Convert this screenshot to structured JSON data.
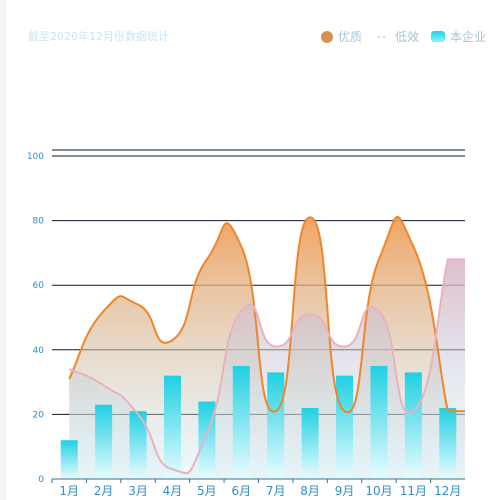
{
  "note": "截至2020年12月份数据统计",
  "colors": {
    "accent_line": "#f0862a",
    "accent_fill": "#eeaa6c",
    "line_pink": "#e8b2c0",
    "bar_top": "#1fd0e3",
    "bar_bottom": "#e9fcff",
    "axis_label": "#2f8fc9",
    "grid": "#0a1a2a"
  },
  "legend": {
    "items": [
      {
        "label": "优质",
        "color": "#d6914e",
        "shape": "circle"
      },
      {
        "label": "低效",
        "color": "#e6bcc7",
        "shape": "dashed"
      },
      {
        "label": "本企业",
        "color": "#22d3e6",
        "shape": "bar"
      }
    ]
  },
  "chart_data": {
    "type": "bar",
    "categories": [
      "1月",
      "2月",
      "3月",
      "4月",
      "5月",
      "6月",
      "7月",
      "8月",
      "9月",
      "10月",
      "11月",
      "12月"
    ],
    "ylim": [
      0,
      100
    ],
    "yticks": [
      0,
      20,
      40,
      60,
      80,
      100
    ],
    "grid": true,
    "legend_position": "top-right",
    "series": [
      {
        "name": "本企业",
        "type": "bar",
        "values": [
          12,
          23,
          21,
          32,
          24,
          35,
          33,
          22,
          32,
          35,
          33,
          22
        ]
      },
      {
        "name": "优质",
        "type": "area",
        "values": [
          31,
          52,
          54,
          43,
          68,
          72,
          21,
          81,
          21,
          68,
          72,
          21
        ]
      },
      {
        "name": "低效",
        "type": "area",
        "values": [
          34,
          29,
          20,
          3,
          14,
          52,
          41,
          51,
          41,
          52,
          21,
          68
        ]
      }
    ]
  }
}
